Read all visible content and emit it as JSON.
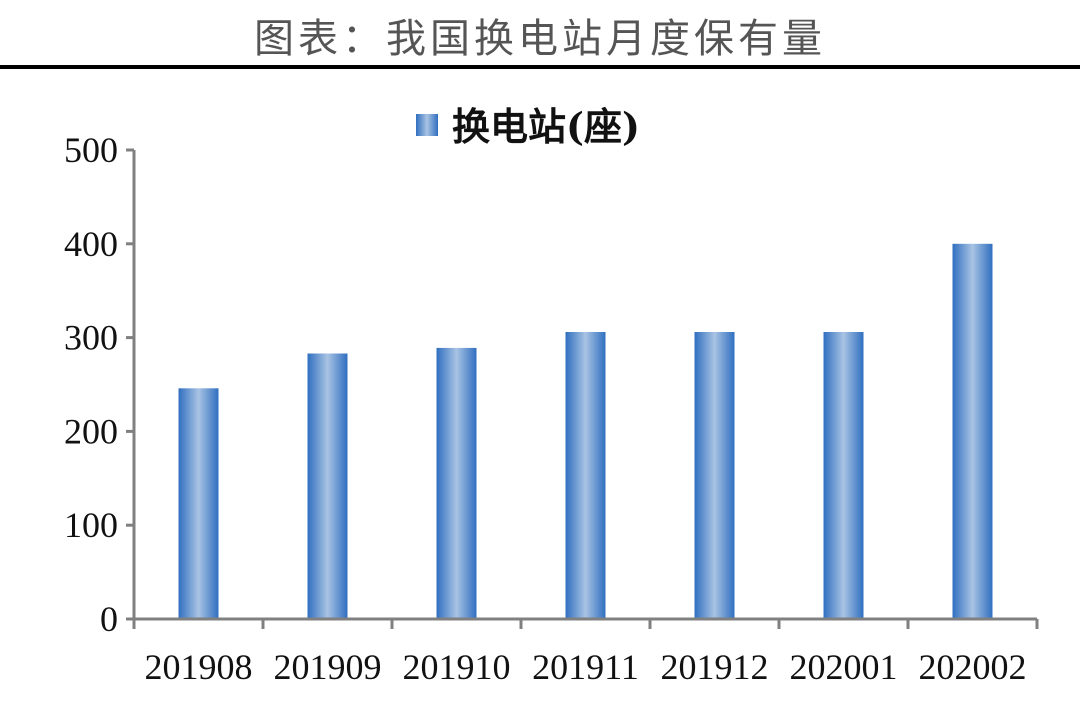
{
  "figure_title": "图表：我国换电站月度保有量",
  "colors": {
    "bar_edge": "#2f6fc0",
    "bar_center": "#a9c3e3",
    "axis": "#808080",
    "rule": "#000000"
  },
  "chart_data": {
    "type": "bar",
    "title": "",
    "xlabel": "",
    "ylabel": "",
    "categories": [
      "201908",
      "201909",
      "201910",
      "201911",
      "201912",
      "202001",
      "202002"
    ],
    "series": [
      {
        "name": "换电站(座)",
        "values": [
          246,
          283,
          289,
          306,
          306,
          306,
          400
        ]
      }
    ],
    "ylim": [
      0,
      500
    ],
    "yticks": [
      0,
      100,
      200,
      300,
      400,
      500
    ],
    "grid": false,
    "legend_position": "top-center"
  }
}
